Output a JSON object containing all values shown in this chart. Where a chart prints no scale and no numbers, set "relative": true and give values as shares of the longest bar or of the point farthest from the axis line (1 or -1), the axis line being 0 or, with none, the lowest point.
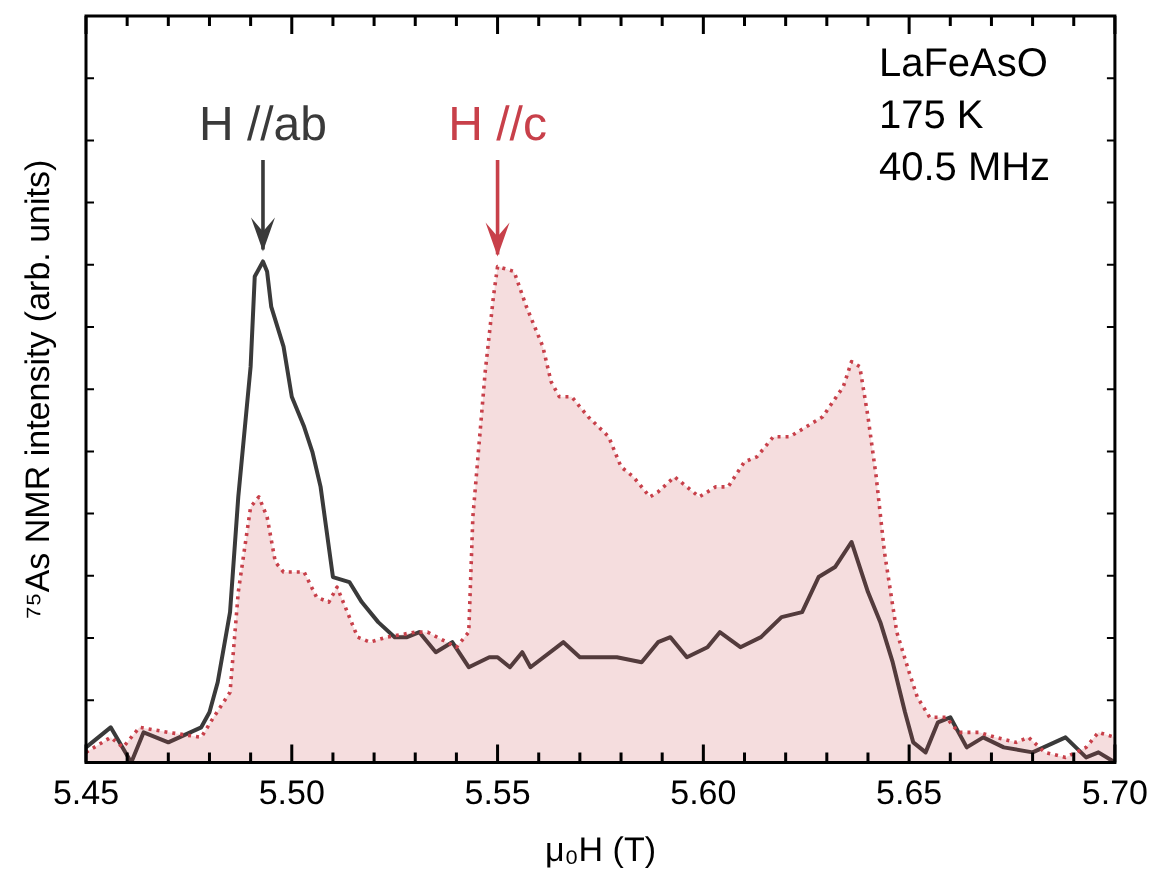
{
  "chart_data": {
    "type": "line",
    "relative": true,
    "xlabel": "μ₀H (T)",
    "ylabel": "⁷⁵As NMR intensity (arb. units)",
    "annotations": [
      "LaFeAsO",
      "175 K",
      "40.5 MHz"
    ],
    "xlim": [
      5.45,
      5.7
    ],
    "xticks": [
      {
        "value": 5.45,
        "label": "5.45"
      },
      {
        "value": 5.46,
        "label": null
      },
      {
        "value": 5.47,
        "label": null
      },
      {
        "value": 5.48,
        "label": null
      },
      {
        "value": 5.49,
        "label": null
      },
      {
        "value": 5.5,
        "label": "5.50"
      },
      {
        "value": 5.51,
        "label": null
      },
      {
        "value": 5.52,
        "label": null
      },
      {
        "value": 5.53,
        "label": null
      },
      {
        "value": 5.54,
        "label": null
      },
      {
        "value": 5.55,
        "label": "5.55"
      },
      {
        "value": 5.56,
        "label": null
      },
      {
        "value": 5.57,
        "label": null
      },
      {
        "value": 5.58,
        "label": null
      },
      {
        "value": 5.59,
        "label": null
      },
      {
        "value": 5.6,
        "label": "5.60"
      },
      {
        "value": 5.61,
        "label": null
      },
      {
        "value": 5.62,
        "label": null
      },
      {
        "value": 5.63,
        "label": null
      },
      {
        "value": 5.64,
        "label": null
      },
      {
        "value": 5.65,
        "label": "5.65"
      },
      {
        "value": 5.66,
        "label": null
      },
      {
        "value": 5.67,
        "label": null
      },
      {
        "value": 5.68,
        "label": null
      },
      {
        "value": 5.69,
        "label": null
      },
      {
        "value": 5.7,
        "label": "5.70"
      }
    ],
    "legend": false,
    "grid": false,
    "series": [
      {
        "name": "H //c",
        "type": "area",
        "line_style": "dotted",
        "color": "#c8404a",
        "x": [
          5.45,
          5.456,
          5.459,
          5.463,
          5.47,
          5.478,
          5.481,
          5.485,
          5.487,
          5.49,
          5.492,
          5.494,
          5.496,
          5.498,
          5.503,
          5.506,
          5.509,
          5.511,
          5.516,
          5.519,
          5.523,
          5.53,
          5.533,
          5.54,
          5.543,
          5.544,
          5.547,
          5.549,
          5.55,
          5.554,
          5.557,
          5.559,
          5.561,
          5.563,
          5.565,
          5.568,
          5.572,
          5.577,
          5.58,
          5.583,
          5.587,
          5.589,
          5.593,
          5.596,
          5.599,
          5.603,
          5.606,
          5.61,
          5.613,
          5.617,
          5.621,
          5.625,
          5.629,
          5.634,
          5.636,
          5.638,
          5.64,
          5.642,
          5.644,
          5.647,
          5.65,
          5.652,
          5.655,
          5.659,
          5.662,
          5.667,
          5.671,
          5.676,
          5.679,
          5.683,
          5.688,
          5.693,
          5.696,
          5.7
        ],
        "values": [
          0.02,
          0.05,
          0.03,
          0.07,
          0.06,
          0.05,
          0.09,
          0.14,
          0.34,
          0.51,
          0.53,
          0.49,
          0.4,
          0.38,
          0.38,
          0.33,
          0.32,
          0.35,
          0.25,
          0.24,
          0.25,
          0.26,
          0.26,
          0.23,
          0.26,
          0.49,
          0.78,
          0.93,
          0.99,
          0.98,
          0.91,
          0.87,
          0.83,
          0.76,
          0.73,
          0.73,
          0.69,
          0.65,
          0.59,
          0.57,
          0.53,
          0.54,
          0.57,
          0.55,
          0.53,
          0.55,
          0.55,
          0.6,
          0.61,
          0.65,
          0.65,
          0.67,
          0.69,
          0.75,
          0.8,
          0.79,
          0.69,
          0.57,
          0.42,
          0.26,
          0.18,
          0.13,
          0.09,
          0.09,
          0.06,
          0.06,
          0.05,
          0.04,
          0.05,
          0.02,
          0.01,
          0.03,
          0.06,
          0.05
        ]
      },
      {
        "name": "H //ab",
        "line_style": "solid",
        "color": "#3a3a3a",
        "x": [
          5.45,
          5.456,
          5.461,
          5.464,
          5.47,
          5.478,
          5.48,
          5.482,
          5.485,
          5.487,
          5.49,
          5.491,
          5.493,
          5.494,
          5.495,
          5.498,
          5.5,
          5.503,
          5.505,
          5.507,
          5.51,
          5.514,
          5.517,
          5.521,
          5.525,
          5.528,
          5.531,
          5.535,
          5.539,
          5.543,
          5.548,
          5.55,
          5.553,
          5.556,
          5.558,
          5.566,
          5.57,
          5.579,
          5.585,
          5.589,
          5.592,
          5.596,
          5.601,
          5.604,
          5.609,
          5.614,
          5.619,
          5.624,
          5.628,
          5.632,
          5.636,
          5.64,
          5.643,
          5.646,
          5.649,
          5.651,
          5.654,
          5.657,
          5.66,
          5.664,
          5.668,
          5.673,
          5.68,
          5.688,
          5.693,
          5.696,
          5.7
        ],
        "values": [
          0.03,
          0.07,
          0.0,
          0.06,
          0.04,
          0.07,
          0.1,
          0.16,
          0.3,
          0.53,
          0.79,
          0.97,
          1.0,
          0.98,
          0.91,
          0.83,
          0.73,
          0.67,
          0.62,
          0.55,
          0.37,
          0.36,
          0.32,
          0.28,
          0.25,
          0.25,
          0.26,
          0.22,
          0.24,
          0.19,
          0.21,
          0.21,
          0.19,
          0.22,
          0.19,
          0.24,
          0.21,
          0.21,
          0.2,
          0.24,
          0.25,
          0.21,
          0.23,
          0.26,
          0.23,
          0.25,
          0.29,
          0.3,
          0.37,
          0.39,
          0.44,
          0.34,
          0.28,
          0.2,
          0.1,
          0.04,
          0.02,
          0.08,
          0.09,
          0.03,
          0.05,
          0.03,
          0.02,
          0.05,
          0.01,
          0.02,
          0.0
        ]
      }
    ]
  }
}
